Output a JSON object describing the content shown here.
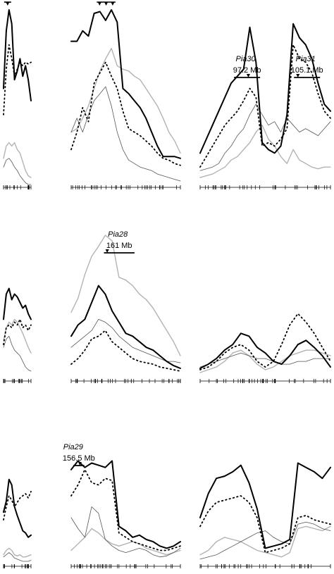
{
  "chart_data": [
    {
      "type": "line",
      "row": 1,
      "panel": "left",
      "series": [
        {
          "style": "thick",
          "values": [
            0.55,
            0.88,
            1.0,
            0.92,
            0.6,
            0.65,
            0.72,
            0.62,
            0.68,
            0.6,
            0.48
          ]
        },
        {
          "style": "dotted",
          "values": [
            0.4,
            0.66,
            0.8,
            0.72,
            0.62,
            0.66,
            0.7,
            0.68,
            0.7,
            0.69,
            0.7
          ]
        },
        {
          "style": "grey",
          "values": [
            0.15,
            0.22,
            0.24,
            0.22,
            0.24,
            0.2,
            0.18,
            0.13,
            0.08,
            0.05,
            0.04
          ]
        },
        {
          "style": "thin",
          "values": [
            0.1,
            0.14,
            0.15,
            0.13,
            0.1,
            0.08,
            0.05,
            0.03,
            0.01,
            0.0,
            0.0
          ]
        }
      ],
      "ylim": [
        0,
        1
      ],
      "markers": [
        0.15
      ],
      "annotations": []
    },
    {
      "type": "line",
      "row": 1,
      "panel": "middle",
      "series": [
        {
          "style": "thick",
          "values": [
            0.82,
            0.82,
            0.88,
            0.85,
            0.98,
            0.99,
            0.94,
            1.0,
            0.93,
            0.55,
            0.52,
            0.48,
            0.44,
            0.38,
            0.3,
            0.22,
            0.16,
            0.16,
            0.16,
            0.15
          ]
        },
        {
          "style": "dotted",
          "values": [
            0.2,
            0.3,
            0.44,
            0.36,
            0.58,
            0.64,
            0.7,
            0.62,
            0.55,
            0.42,
            0.32,
            0.3,
            0.28,
            0.25,
            0.22,
            0.18,
            0.15,
            0.14,
            0.12,
            0.11
          ]
        },
        {
          "style": "grey",
          "values": [
            0.3,
            0.32,
            0.38,
            0.45,
            0.55,
            0.65,
            0.72,
            0.78,
            0.68,
            0.66,
            0.65,
            0.62,
            0.6,
            0.55,
            0.5,
            0.45,
            0.38,
            0.3,
            0.25,
            0.18
          ]
        },
        {
          "style": "thin",
          "values": [
            0.3,
            0.38,
            0.3,
            0.4,
            0.48,
            0.52,
            0.56,
            0.45,
            0.3,
            0.2,
            0.14,
            0.12,
            0.1,
            0.09,
            0.08,
            0.06,
            0.05,
            0.04,
            0.03,
            0.02
          ]
        }
      ],
      "ylim": [
        0,
        1
      ],
      "markers": [
        0.26,
        0.32,
        0.38
      ],
      "annotations": []
    },
    {
      "type": "line",
      "row": 1,
      "panel": "right",
      "series": [
        {
          "style": "thick",
          "values": [
            0.18,
            0.26,
            0.34,
            0.42,
            0.5,
            0.58,
            0.62,
            0.66,
            0.9,
            0.7,
            0.24,
            0.2,
            0.18,
            0.22,
            0.4,
            0.92,
            0.84,
            0.8,
            0.72,
            0.58,
            0.46,
            0.42
          ]
        },
        {
          "style": "dotted",
          "values": [
            0.1,
            0.16,
            0.22,
            0.28,
            0.34,
            0.38,
            0.42,
            0.48,
            0.55,
            0.5,
            0.22,
            0.24,
            0.22,
            0.26,
            0.32,
            0.8,
            0.72,
            0.7,
            0.64,
            0.52,
            0.42,
            0.38
          ]
        },
        {
          "style": "grey",
          "values": [
            0.04,
            0.05,
            0.06,
            0.08,
            0.1,
            0.14,
            0.16,
            0.2,
            0.24,
            0.3,
            0.34,
            0.26,
            0.22,
            0.16,
            0.12,
            0.2,
            0.14,
            0.12,
            0.1,
            0.09,
            0.1,
            0.1
          ]
        },
        {
          "style": "thin",
          "values": [
            0.08,
            0.09,
            0.1,
            0.12,
            0.18,
            0.22,
            0.28,
            0.32,
            0.4,
            0.46,
            0.4,
            0.34,
            0.36,
            0.3,
            0.38,
            0.34,
            0.3,
            0.32,
            0.3,
            0.28,
            0.32,
            0.36
          ]
        }
      ],
      "ylim": [
        0,
        1
      ],
      "markers": [],
      "annotations": [
        {
          "name": "Pia30",
          "position": "97.2 Mb",
          "bar": [
            0.26,
            0.46
          ],
          "arrow": 0.37
        },
        {
          "name": "Pia31",
          "position": "105.1 Mb",
          "bar": [
            0.72,
            0.92
          ],
          "arrow": 0.75
        }
      ]
    },
    {
      "type": "line",
      "row": 2,
      "panel": "left",
      "series": [
        {
          "style": "thick",
          "values": [
            0.4,
            0.58,
            0.62,
            0.54,
            0.58,
            0.56,
            0.52,
            0.48,
            0.5,
            0.44,
            0.4
          ]
        },
        {
          "style": "dotted",
          "values": [
            0.22,
            0.34,
            0.36,
            0.34,
            0.38,
            0.36,
            0.4,
            0.34,
            0.36,
            0.32,
            0.36
          ]
        },
        {
          "style": "grey",
          "values": [
            0.25,
            0.34,
            0.38,
            0.36,
            0.4,
            0.38,
            0.34,
            0.3,
            0.25,
            0.2,
            0.16
          ]
        },
        {
          "style": "thin",
          "values": [
            0.2,
            0.26,
            0.28,
            0.22,
            0.18,
            0.16,
            0.14,
            0.1,
            0.06,
            0.04,
            0.03
          ]
        }
      ],
      "ylim": [
        0,
        1
      ],
      "markers": [],
      "annotations": []
    },
    {
      "type": "line",
      "row": 2,
      "panel": "middle",
      "series": [
        {
          "style": "thick",
          "values": [
            0.28,
            0.36,
            0.4,
            0.52,
            0.64,
            0.58,
            0.46,
            0.38,
            0.3,
            0.28,
            0.24,
            0.2,
            0.18,
            0.14,
            0.1,
            0.07,
            0.05
          ]
        },
        {
          "style": "dotted",
          "values": [
            0.08,
            0.12,
            0.18,
            0.26,
            0.28,
            0.32,
            0.24,
            0.2,
            0.16,
            0.12,
            0.1,
            0.09,
            0.08,
            0.06,
            0.05,
            0.04,
            0.03
          ]
        },
        {
          "style": "grey",
          "values": [
            0.45,
            0.55,
            0.72,
            0.85,
            0.92,
            1.0,
            0.96,
            0.7,
            0.68,
            0.64,
            0.58,
            0.54,
            0.48,
            0.4,
            0.32,
            0.24,
            0.14
          ]
        },
        {
          "style": "thin",
          "values": [
            0.2,
            0.24,
            0.28,
            0.32,
            0.4,
            0.38,
            0.34,
            0.28,
            0.24,
            0.2,
            0.18,
            0.16,
            0.14,
            0.12,
            0.1,
            0.1,
            0.09
          ]
        }
      ],
      "ylim": [
        0,
        1
      ],
      "markers": [],
      "annotations": [
        {
          "name": "Pia28",
          "position": "161 Mb",
          "bar": [
            0.3,
            0.58
          ],
          "arrow": 0.33
        }
      ]
    },
    {
      "type": "line",
      "row": 2,
      "panel": "right",
      "series": [
        {
          "style": "thick",
          "values": [
            0.05,
            0.08,
            0.12,
            0.18,
            0.22,
            0.3,
            0.28,
            0.2,
            0.16,
            0.1,
            0.08,
            0.14,
            0.22,
            0.25,
            0.2,
            0.14,
            0.06
          ]
        },
        {
          "style": "dotted",
          "values": [
            0.04,
            0.06,
            0.1,
            0.16,
            0.2,
            0.22,
            0.18,
            0.1,
            0.06,
            0.1,
            0.22,
            0.36,
            0.44,
            0.38,
            0.3,
            0.2,
            0.1
          ]
        },
        {
          "style": "grey",
          "values": [
            0.02,
            0.04,
            0.06,
            0.1,
            0.16,
            0.18,
            0.14,
            0.08,
            0.04,
            0.06,
            0.1,
            0.14,
            0.16,
            0.18,
            0.18,
            0.16,
            0.14
          ]
        },
        {
          "style": "thin",
          "values": [
            0.06,
            0.08,
            0.1,
            0.12,
            0.14,
            0.16,
            0.14,
            0.12,
            0.12,
            0.1,
            0.08,
            0.08,
            0.1,
            0.1,
            0.12,
            0.12,
            0.12
          ]
        }
      ],
      "ylim": [
        0,
        1
      ],
      "markers": [],
      "annotations": []
    },
    {
      "type": "line",
      "row": 3,
      "panel": "left",
      "series": [
        {
          "style": "thick",
          "values": [
            0.45,
            0.55,
            0.75,
            0.7,
            0.5,
            0.42,
            0.35,
            0.28,
            0.26,
            0.22,
            0.24
          ]
        },
        {
          "style": "dotted",
          "values": [
            0.38,
            0.5,
            0.6,
            0.56,
            0.5,
            0.54,
            0.58,
            0.6,
            0.62,
            0.58,
            0.64
          ]
        },
        {
          "style": "grey",
          "values": [
            0.06,
            0.1,
            0.12,
            0.1,
            0.06,
            0.05,
            0.06,
            0.04,
            0.04,
            0.05,
            0.06
          ]
        },
        {
          "style": "thin",
          "values": [
            0.04,
            0.06,
            0.08,
            0.06,
            0.03,
            0.02,
            0.01,
            0.0,
            0.0,
            0.0,
            0.01
          ]
        }
      ],
      "ylim": [
        0,
        1
      ],
      "markers": [],
      "annotations": []
    },
    {
      "type": "line",
      "row": 3,
      "panel": "middle",
      "series": [
        {
          "style": "thick",
          "values": [
            0.84,
            0.92,
            0.86,
            0.9,
            0.88,
            0.86,
            0.92,
            0.32,
            0.28,
            0.22,
            0.24,
            0.2,
            0.18,
            0.14,
            0.12,
            0.14,
            0.18
          ]
        },
        {
          "style": "dotted",
          "values": [
            0.6,
            0.7,
            0.84,
            0.72,
            0.7,
            0.76,
            0.74,
            0.26,
            0.22,
            0.18,
            0.16,
            0.14,
            0.12,
            0.1,
            0.1,
            0.12,
            0.14
          ]
        },
        {
          "style": "grey",
          "values": [
            0.1,
            0.16,
            0.22,
            0.3,
            0.26,
            0.2,
            0.16,
            0.14,
            0.16,
            0.18,
            0.16,
            0.12,
            0.1,
            0.08,
            0.06,
            0.08,
            0.1
          ]
        },
        {
          "style": "thin",
          "values": [
            0.4,
            0.3,
            0.22,
            0.5,
            0.44,
            0.2,
            0.14,
            0.1,
            0.08,
            0.1,
            0.12,
            0.1,
            0.06,
            0.04,
            0.05,
            0.08,
            0.12
          ]
        }
      ],
      "ylim": [
        0,
        1
      ],
      "markers": [],
      "annotations": [
        {
          "name": "Pia29",
          "position": "156.5 Mb",
          "bar": [
            0.02,
            0.12
          ],
          "arrow": 0.08
        }
      ]
    },
    {
      "type": "line",
      "row": 3,
      "panel": "right",
      "series": [
        {
          "style": "thick",
          "values": [
            0.4,
            0.62,
            0.76,
            0.78,
            0.82,
            0.88,
            0.72,
            0.48,
            0.12,
            0.14,
            0.16,
            0.2,
            0.9,
            0.86,
            0.82,
            0.76,
            0.86
          ]
        },
        {
          "style": "dotted",
          "values": [
            0.32,
            0.46,
            0.54,
            0.56,
            0.58,
            0.6,
            0.54,
            0.4,
            0.08,
            0.1,
            0.12,
            0.16,
            0.4,
            0.42,
            0.38,
            0.36,
            0.34
          ]
        },
        {
          "style": "grey",
          "values": [
            0.06,
            0.1,
            0.18,
            0.22,
            0.2,
            0.18,
            0.14,
            0.1,
            0.08,
            0.06,
            0.04,
            0.08,
            0.3,
            0.32,
            0.3,
            0.28,
            0.32
          ]
        },
        {
          "style": "thin",
          "values": [
            0.02,
            0.04,
            0.06,
            0.1,
            0.14,
            0.18,
            0.22,
            0.26,
            0.28,
            0.22,
            0.18,
            0.16,
            0.34,
            0.36,
            0.34,
            0.3,
            0.28
          ]
        }
      ],
      "ylim": [
        0,
        1
      ],
      "markers": [],
      "annotations": []
    }
  ],
  "colors": {
    "thick": "#000000",
    "dotted": "#000000",
    "grey": "#b3b3b3",
    "thin": "#555555"
  }
}
